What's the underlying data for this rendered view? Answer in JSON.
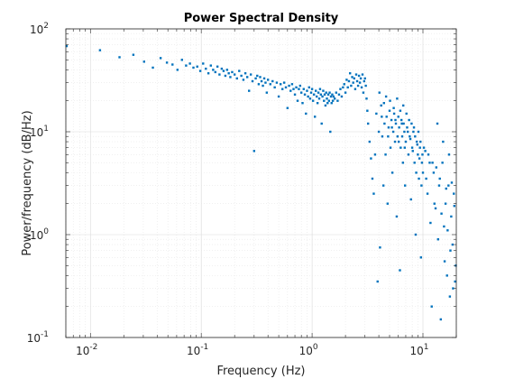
{
  "chart_data": {
    "type": "scatter",
    "title": "Power Spectral Density",
    "xlabel": "Frequency (Hz)",
    "ylabel": "Power/frequency (dB/Hz)",
    "xscale": "log",
    "yscale": "log",
    "xlim": [
      0.006,
      20
    ],
    "ylim": [
      0.1,
      100
    ],
    "grid": "major and minor",
    "marker_color": "#0072BD",
    "x_ticks": [
      {
        "value": 0.01,
        "base": "10",
        "exp": "-2"
      },
      {
        "value": 0.1,
        "base": "10",
        "exp": "-1"
      },
      {
        "value": 1,
        "base": "10",
        "exp": "0"
      },
      {
        "value": 10,
        "base": "10",
        "exp": "1"
      }
    ],
    "y_ticks": [
      {
        "value": 0.1,
        "base": "10",
        "exp": "-1"
      },
      {
        "value": 1,
        "base": "10",
        "exp": "0"
      },
      {
        "value": 10,
        "base": "10",
        "exp": "1"
      },
      {
        "value": 100,
        "base": "10",
        "exp": "2"
      }
    ],
    "points": [
      [
        0.0061,
        68
      ],
      [
        0.0122,
        62
      ],
      [
        0.0183,
        53
      ],
      [
        0.0244,
        56
      ],
      [
        0.0305,
        48
      ],
      [
        0.0366,
        42
      ],
      [
        0.043,
        52
      ],
      [
        0.049,
        47
      ],
      [
        0.055,
        45
      ],
      [
        0.061,
        40
      ],
      [
        0.067,
        50
      ],
      [
        0.073,
        44
      ],
      [
        0.079,
        46
      ],
      [
        0.085,
        42
      ],
      [
        0.092,
        43
      ],
      [
        0.098,
        39
      ],
      [
        0.104,
        46
      ],
      [
        0.11,
        41
      ],
      [
        0.116,
        37
      ],
      [
        0.122,
        44
      ],
      [
        0.128,
        40
      ],
      [
        0.134,
        38
      ],
      [
        0.14,
        43
      ],
      [
        0.146,
        36
      ],
      [
        0.153,
        41
      ],
      [
        0.159,
        39
      ],
      [
        0.165,
        35
      ],
      [
        0.171,
        40
      ],
      [
        0.177,
        37
      ],
      [
        0.183,
        34
      ],
      [
        0.19,
        38
      ],
      [
        0.2,
        36
      ],
      [
        0.21,
        33
      ],
      [
        0.22,
        39
      ],
      [
        0.23,
        35
      ],
      [
        0.24,
        32
      ],
      [
        0.25,
        37
      ],
      [
        0.26,
        34
      ],
      [
        0.27,
        25
      ],
      [
        0.28,
        36
      ],
      [
        0.29,
        31
      ],
      [
        0.3,
        6.5
      ],
      [
        0.31,
        33
      ],
      [
        0.32,
        35
      ],
      [
        0.33,
        29
      ],
      [
        0.34,
        34
      ],
      [
        0.35,
        31
      ],
      [
        0.36,
        28
      ],
      [
        0.37,
        33
      ],
      [
        0.38,
        30
      ],
      [
        0.39,
        24
      ],
      [
        0.4,
        32
      ],
      [
        0.42,
        29
      ],
      [
        0.44,
        31
      ],
      [
        0.46,
        27
      ],
      [
        0.48,
        30
      ],
      [
        0.5,
        22
      ],
      [
        0.52,
        29
      ],
      [
        0.54,
        26
      ],
      [
        0.56,
        30
      ],
      [
        0.58,
        27
      ],
      [
        0.6,
        17
      ],
      [
        0.62,
        28
      ],
      [
        0.64,
        25
      ],
      [
        0.66,
        29
      ],
      [
        0.68,
        26
      ],
      [
        0.7,
        23
      ],
      [
        0.72,
        27
      ],
      [
        0.74,
        20
      ],
      [
        0.76,
        26
      ],
      [
        0.78,
        28
      ],
      [
        0.8,
        24
      ],
      [
        0.82,
        19
      ],
      [
        0.84,
        26
      ],
      [
        0.86,
        23
      ],
      [
        0.88,
        15
      ],
      [
        0.9,
        25
      ],
      [
        0.92,
        22
      ],
      [
        0.94,
        27
      ],
      [
        0.96,
        21
      ],
      [
        0.98,
        24
      ],
      [
        1.0,
        26
      ],
      [
        1.02,
        20
      ],
      [
        1.04,
        23
      ],
      [
        1.06,
        14
      ],
      [
        1.08,
        25
      ],
      [
        1.1,
        22
      ],
      [
        1.12,
        19
      ],
      [
        1.14,
        24
      ],
      [
        1.16,
        21
      ],
      [
        1.18,
        26
      ],
      [
        1.2,
        23
      ],
      [
        1.22,
        12
      ],
      [
        1.24,
        22
      ],
      [
        1.26,
        25
      ],
      [
        1.28,
        20
      ],
      [
        1.3,
        23
      ],
      [
        1.32,
        18
      ],
      [
        1.34,
        24
      ],
      [
        1.36,
        21
      ],
      [
        1.38,
        19
      ],
      [
        1.4,
        23
      ],
      [
        1.42,
        20
      ],
      [
        1.44,
        24
      ],
      [
        1.46,
        10
      ],
      [
        1.48,
        22
      ],
      [
        1.5,
        19
      ],
      [
        1.52,
        23
      ],
      [
        1.54,
        20
      ],
      [
        1.56,
        22
      ],
      [
        1.6,
        21
      ],
      [
        1.65,
        24
      ],
      [
        1.7,
        20
      ],
      [
        1.75,
        23
      ],
      [
        1.8,
        26
      ],
      [
        1.85,
        22
      ],
      [
        1.9,
        27
      ],
      [
        1.95,
        29
      ],
      [
        2.0,
        24
      ],
      [
        2.05,
        32
      ],
      [
        2.1,
        27
      ],
      [
        2.15,
        31
      ],
      [
        2.2,
        37
      ],
      [
        2.25,
        28
      ],
      [
        2.3,
        34
      ],
      [
        2.35,
        30
      ],
      [
        2.4,
        33
      ],
      [
        2.45,
        26
      ],
      [
        2.5,
        36
      ],
      [
        2.55,
        31
      ],
      [
        2.6,
        28
      ],
      [
        2.65,
        35
      ],
      [
        2.7,
        30
      ],
      [
        2.75,
        33
      ],
      [
        2.8,
        27
      ],
      [
        2.85,
        36
      ],
      [
        2.9,
        24
      ],
      [
        2.95,
        31
      ],
      [
        3.0,
        33
      ],
      [
        3.05,
        28
      ],
      [
        3.1,
        21
      ],
      [
        3.15,
        16
      ],
      [
        3.2,
        12
      ],
      [
        3.3,
        8
      ],
      [
        3.4,
        5.5
      ],
      [
        3.5,
        3.5
      ],
      [
        3.6,
        2.5
      ],
      [
        3.7,
        6
      ],
      [
        3.8,
        15
      ],
      [
        3.9,
        0.35
      ],
      [
        4.0,
        10
      ],
      [
        4.1,
        0.75
      ],
      [
        4.2,
        18
      ],
      [
        4.3,
        9
      ],
      [
        4.4,
        3
      ],
      [
        4.5,
        12
      ],
      [
        4.6,
        6
      ],
      [
        4.7,
        14
      ],
      [
        4.8,
        2
      ],
      [
        4.9,
        11
      ],
      [
        5.0,
        16
      ],
      [
        5.1,
        7
      ],
      [
        5.2,
        13
      ],
      [
        5.3,
        4
      ],
      [
        5.4,
        10
      ],
      [
        5.5,
        15
      ],
      [
        5.6,
        8
      ],
      [
        5.7,
        12
      ],
      [
        5.8,
        1.5
      ],
      [
        5.9,
        9
      ],
      [
        6.0,
        14
      ],
      [
        6.1,
        11
      ],
      [
        6.2,
        0.45
      ],
      [
        6.3,
        7
      ],
      [
        6.4,
        13
      ],
      [
        6.5,
        9
      ],
      [
        6.6,
        5
      ],
      [
        6.7,
        12
      ],
      [
        6.8,
        10
      ],
      [
        6.9,
        3
      ],
      [
        7.0,
        8
      ],
      [
        7.2,
        11
      ],
      [
        7.4,
        6
      ],
      [
        7.6,
        9
      ],
      [
        7.8,
        2.2
      ],
      [
        8.0,
        7
      ],
      [
        8.2,
        10
      ],
      [
        8.4,
        5
      ],
      [
        8.6,
        1
      ],
      [
        8.8,
        8
      ],
      [
        9.0,
        6
      ],
      [
        9.2,
        3.5
      ],
      [
        9.4,
        7
      ],
      [
        9.6,
        0.6
      ],
      [
        9.8,
        5
      ],
      [
        10.0,
        4
      ],
      [
        10.5,
        6.5
      ],
      [
        11.0,
        2.5
      ],
      [
        11.5,
        5
      ],
      [
        12.0,
        0.2
      ],
      [
        12.5,
        4
      ],
      [
        13.0,
        1.8
      ],
      [
        13.5,
        12
      ],
      [
        14.0,
        3
      ],
      [
        14.5,
        0.15
      ],
      [
        15.0,
        5
      ],
      [
        15.5,
        1.2
      ],
      [
        16.0,
        2
      ],
      [
        16.5,
        0.4
      ],
      [
        17.0,
        3
      ],
      [
        17.5,
        0.25
      ],
      [
        18.0,
        1.5
      ],
      [
        18.5,
        0.8
      ],
      [
        19.0,
        2.5
      ],
      [
        19.5,
        0.35
      ],
      [
        4.05,
        24
      ],
      [
        4.25,
        14
      ],
      [
        4.45,
        19
      ],
      [
        4.65,
        22
      ],
      [
        4.85,
        9
      ],
      [
        5.05,
        20
      ],
      [
        5.25,
        11
      ],
      [
        5.45,
        17
      ],
      [
        5.65,
        13
      ],
      [
        5.85,
        21
      ],
      [
        6.05,
        8
      ],
      [
        6.25,
        16
      ],
      [
        6.45,
        12
      ],
      [
        6.65,
        18
      ],
      [
        6.85,
        7
      ],
      [
        7.1,
        15
      ],
      [
        7.3,
        10
      ],
      [
        7.5,
        13
      ],
      [
        7.7,
        8.5
      ],
      [
        7.9,
        12
      ],
      [
        8.1,
        6.5
      ],
      [
        8.3,
        11
      ],
      [
        8.5,
        9
      ],
      [
        8.7,
        4
      ],
      [
        8.9,
        7.5
      ],
      [
        9.1,
        10
      ],
      [
        9.3,
        5.5
      ],
      [
        9.5,
        8
      ],
      [
        9.7,
        3
      ],
      [
        9.9,
        6
      ],
      [
        10.2,
        7
      ],
      [
        10.7,
        3.5
      ],
      [
        11.2,
        6
      ],
      [
        11.7,
        1.3
      ],
      [
        12.2,
        5
      ],
      [
        12.7,
        2
      ],
      [
        13.2,
        4.5
      ],
      [
        13.7,
        0.9
      ],
      [
        14.2,
        3.5
      ],
      [
        14.7,
        1.6
      ],
      [
        15.2,
        8
      ],
      [
        15.7,
        0.55
      ],
      [
        16.2,
        2.8
      ],
      [
        16.7,
        1.1
      ],
      [
        17.2,
        6
      ],
      [
        17.7,
        0.7
      ],
      [
        18.2,
        3.2
      ],
      [
        18.7,
        0.3
      ],
      [
        19.2,
        1.9
      ],
      [
        19.8,
        0.5
      ]
    ]
  }
}
